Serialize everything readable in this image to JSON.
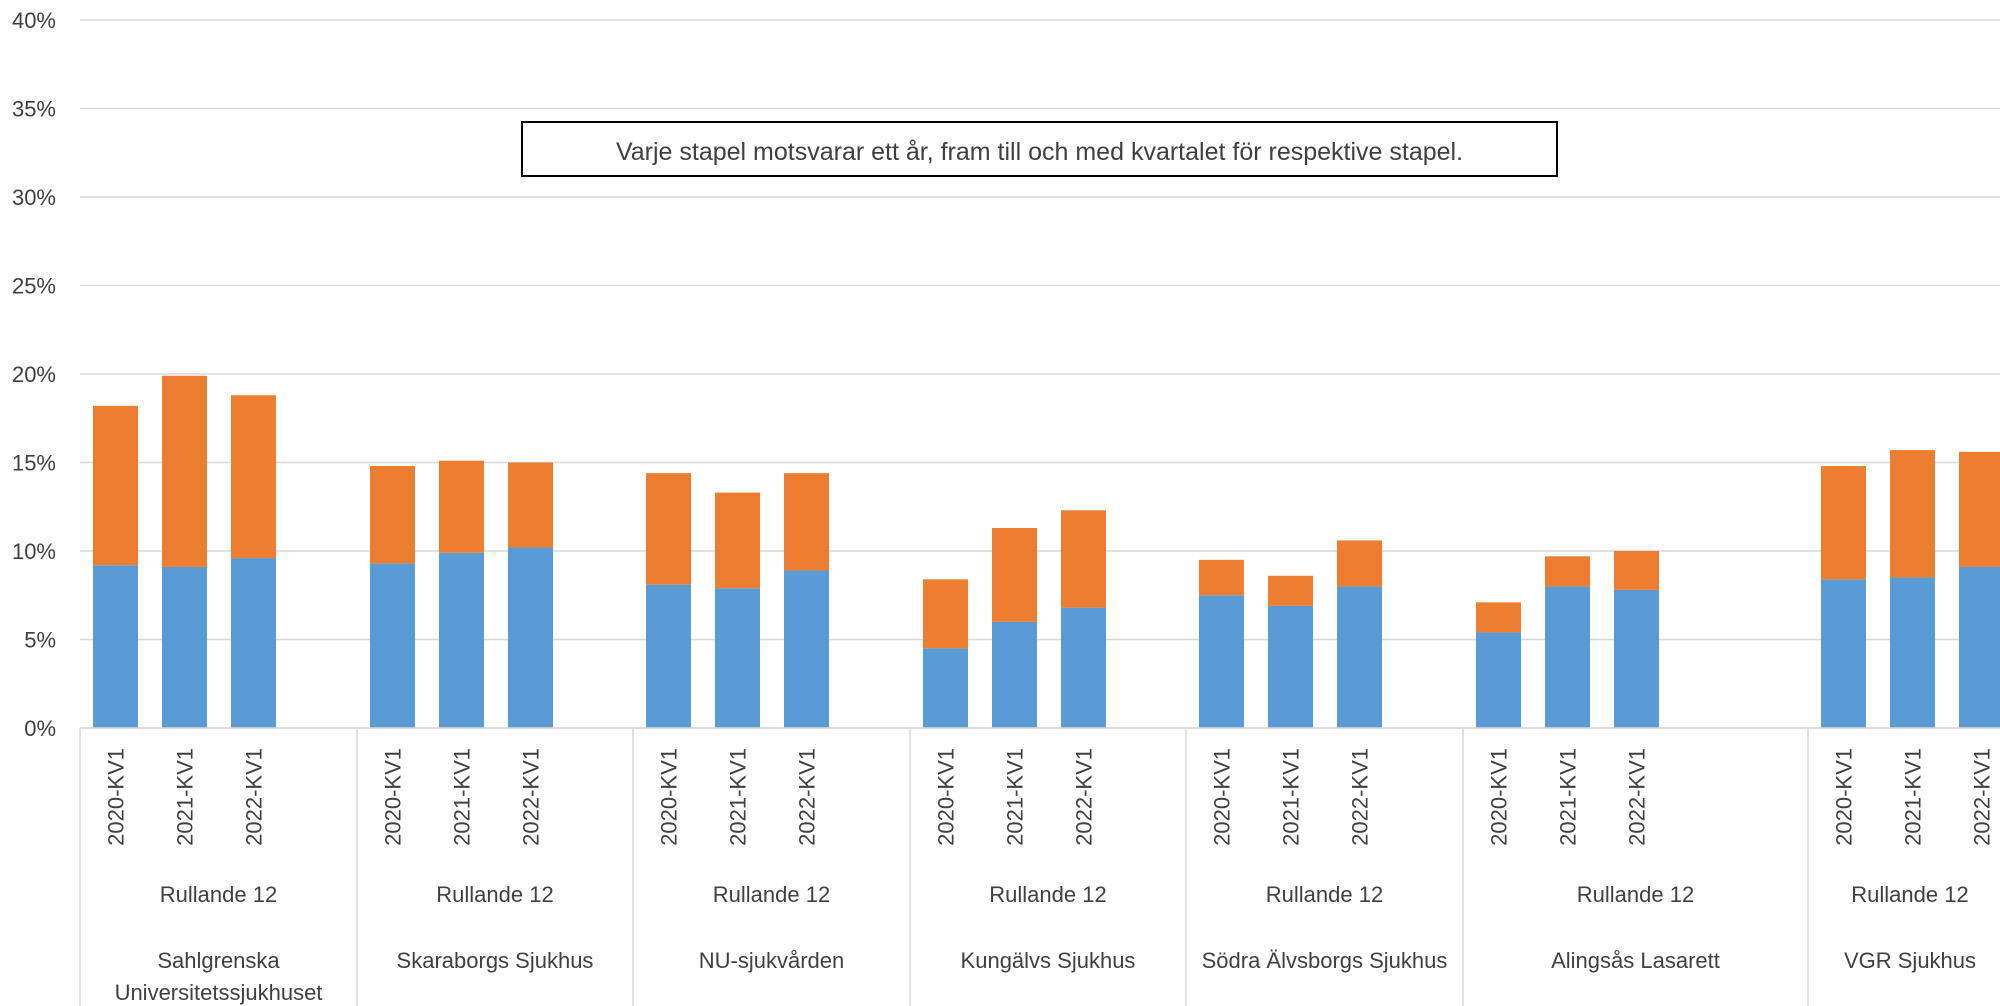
{
  "chart_data": {
    "type": "bar",
    "stacked": true,
    "annotation": "Varje stapel motsvarar ett år, fram till och med kvartalet för respektive stapel.",
    "y_ticks": [
      "0%",
      "5%",
      "10%",
      "15%",
      "20%",
      "25%",
      "30%",
      "35%",
      "40%"
    ],
    "ylim": [
      0,
      40
    ],
    "grid": true,
    "series_colors": [
      "#5b9bd5",
      "#ed7d31"
    ],
    "groups": [
      {
        "name": [
          "Sahlgrenska",
          "Universitetssjukhuset"
        ],
        "period": "Rullande 12",
        "bars": [
          {
            "label": "2020-KV1",
            "values": [
              9.2,
              9.0
            ]
          },
          {
            "label": "2021-KV1",
            "values": [
              9.1,
              10.8
            ]
          },
          {
            "label": "2022-KV1",
            "values": [
              9.6,
              9.2
            ]
          }
        ]
      },
      {
        "name": [
          "Skaraborgs Sjukhus"
        ],
        "period": "Rullande 12",
        "bars": [
          {
            "label": "2020-KV1",
            "values": [
              9.3,
              5.5
            ]
          },
          {
            "label": "2021-KV1",
            "values": [
              9.9,
              5.2
            ]
          },
          {
            "label": "2022-KV1",
            "values": [
              10.2,
              4.8
            ]
          }
        ]
      },
      {
        "name": [
          "NU-sjukvården"
        ],
        "period": "Rullande 12",
        "bars": [
          {
            "label": "2020-KV1",
            "values": [
              8.1,
              6.3
            ]
          },
          {
            "label": "2021-KV1",
            "values": [
              7.9,
              5.4
            ]
          },
          {
            "label": "2022-KV1",
            "values": [
              8.9,
              5.5
            ]
          }
        ]
      },
      {
        "name": [
          "Kungälvs Sjukhus"
        ],
        "period": "Rullande 12",
        "bars": [
          {
            "label": "2020-KV1",
            "values": [
              4.5,
              3.9
            ]
          },
          {
            "label": "2021-KV1",
            "values": [
              6.0,
              5.3
            ]
          },
          {
            "label": "2022-KV1",
            "values": [
              6.8,
              5.5
            ]
          }
        ]
      },
      {
        "name": [
          "Södra Älvsborgs Sjukhus"
        ],
        "period": "Rullande 12",
        "bars": [
          {
            "label": "2020-KV1",
            "values": [
              7.5,
              2.0
            ]
          },
          {
            "label": "2021-KV1",
            "values": [
              6.9,
              1.7
            ]
          },
          {
            "label": "2022-KV1",
            "values": [
              8.0,
              2.6
            ]
          }
        ]
      },
      {
        "name": [
          "Alingsås Lasarett"
        ],
        "period": "Rullande 12",
        "bars": [
          {
            "label": "2020-KV1",
            "values": [
              5.4,
              1.7
            ]
          },
          {
            "label": "2021-KV1",
            "values": [
              8.0,
              1.7
            ]
          },
          {
            "label": "2022-KV1",
            "values": [
              7.8,
              2.2
            ]
          }
        ]
      },
      {
        "name": [
          "VGR Sjukhus"
        ],
        "period": "Rullande 12",
        "bars": [
          {
            "label": "2020-KV1",
            "values": [
              8.4,
              6.4
            ]
          },
          {
            "label": "2021-KV1",
            "values": [
              8.5,
              7.2
            ]
          },
          {
            "label": "2022-KV1",
            "values": [
              9.1,
              6.5
            ]
          }
        ]
      }
    ]
  }
}
